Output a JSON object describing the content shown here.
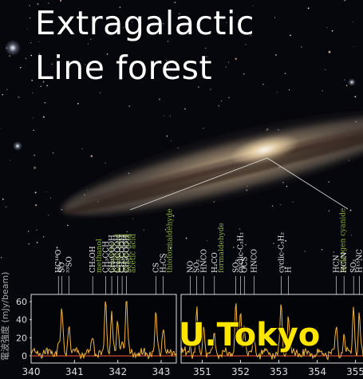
{
  "title_lines": [
    "Extragalactic",
    "Line forest"
  ],
  "watermark": "U.Tokyo",
  "spectrum": {
    "y_axis_label": "電波強度 (mJy/beam)",
    "y_ticks": [
      "60",
      "40",
      "20",
      "0"
    ],
    "y_range": [
      -8,
      68
    ],
    "panels": [
      {
        "x_range": [
          340,
          343.35
        ],
        "x_ticks": [
          "340",
          "341",
          "342",
          "343"
        ],
        "lines": [
          {
            "label": "HC¹⁸O⁺",
            "freq": 340.63,
            "color": "#f2f2f2"
          },
          {
            "label": "SO",
            "freq": 340.71,
            "color": "#f2f2f2"
          },
          {
            "label": "³³SO",
            "freq": 340.87,
            "color": "#f2f2f2"
          },
          {
            "label": "CH₃OH",
            "freq": 341.42,
            "color": "#f2f2f2"
          },
          {
            "label": "methanol",
            "freq": null,
            "color": "#8bb23a"
          },
          {
            "label": "CH₃CCH",
            "freq": 341.72,
            "color": "#f2f2f2"
          },
          {
            "label": "propyne",
            "freq": null,
            "color": "#8bb23a"
          },
          {
            "label": "CH₃COOH",
            "freq": 341.86,
            "color": "#f2f2f2"
          },
          {
            "label": "acetic acid",
            "freq": null,
            "color": "#8bb23a"
          },
          {
            "label": "CH₃COOH",
            "freq": 342.0,
            "color": "#f2f2f2"
          },
          {
            "label": "acetic acid",
            "freq": null,
            "color": "#8bb23a"
          },
          {
            "label": "CH₃COOH",
            "freq": 342.1,
            "color": "#f2f2f2"
          },
          {
            "label": "acetic acid",
            "freq": null,
            "color": "#8bb23a"
          },
          {
            "label": "CH₃COOH",
            "freq": 342.2,
            "color": "#f2f2f2"
          },
          {
            "label": "acetic acid",
            "freq": null,
            "color": "#8bb23a"
          },
          {
            "label": "CS",
            "freq": 342.88,
            "color": "#f2f2f2"
          },
          {
            "label": "H₂CS",
            "freq": 343.05,
            "color": "#f2f2f2"
          },
          {
            "label": "thioformaldehyde",
            "freq": null,
            "color": "#8bb23a"
          }
        ]
      },
      {
        "x_range": [
          350.45,
          355.3
        ],
        "x_ticks": [
          "351",
          "352",
          "353",
          "354",
          "355"
        ],
        "lines": [
          {
            "label": "NO",
            "freq": 350.69,
            "color": "#f2f2f2"
          },
          {
            "label": "SO₂",
            "freq": 350.86,
            "color": "#f2f2f2"
          },
          {
            "label": "HNCO",
            "freq": 351.04,
            "color": "#f2f2f2"
          },
          {
            "label": "H₂CO",
            "freq": 351.32,
            "color": "#f2f2f2"
          },
          {
            "label": "formaldehyde",
            "freq": null,
            "color": "#8bb23a"
          },
          {
            "label": "SO₂",
            "freq": 351.88,
            "color": "#f2f2f2"
          },
          {
            "label": "cyclic-C₃H₂",
            "freq": 352.0,
            "color": "#f2f2f2"
          },
          {
            "label": "OCS",
            "freq": 352.1,
            "color": "#f2f2f2"
          },
          {
            "label": "HNCO",
            "freq": 352.35,
            "color": "#f2f2f2"
          },
          {
            "label": "cyclic-C₃H₂",
            "freq": 353.06,
            "color": "#f2f2f2"
          },
          {
            "label": "H",
            "freq": 353.25,
            "color": "#f2f2f2"
          },
          {
            "label": "HCN",
            "freq": 354.5,
            "color": "#f2f2f2"
          },
          {
            "label": "hydrogen cyanide",
            "freq": null,
            "color": "#8bb23a"
          },
          {
            "label": "HC₃N",
            "freq": 354.7,
            "color": "#f2f2f2"
          },
          {
            "label": "SO₂",
            "freq": 354.95,
            "color": "#f2f2f2"
          },
          {
            "label": "H¹⁵NC",
            "freq": 355.1,
            "color": "#f2f2f2"
          }
        ]
      }
    ]
  },
  "colors": {
    "spectrum": "#f5b53a",
    "zero_line": "#ff5a3c",
    "axis": "#dddddd",
    "annotation": "#f2f2f2",
    "molecule_name": "#8bb23a",
    "watermark": "#ffe600"
  }
}
